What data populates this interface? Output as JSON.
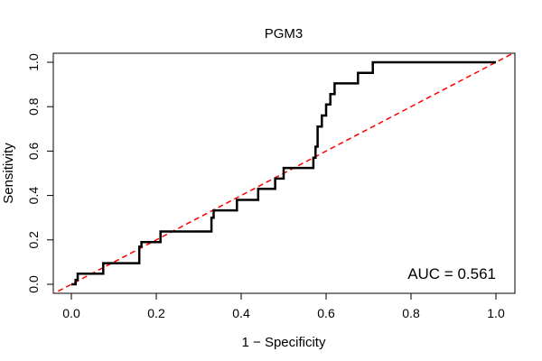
{
  "chart_data": {
    "type": "line",
    "title": "PGM3",
    "xlabel": "1 − Specificity",
    "ylabel": "Sensitivity",
    "xlim": [
      0.0,
      1.0
    ],
    "ylim": [
      0.0,
      1.0
    ],
    "xticks": [
      "0.0",
      "0.2",
      "0.4",
      "0.6",
      "0.8",
      "1.0"
    ],
    "yticks": [
      "0.0",
      "0.2",
      "0.4",
      "0.6",
      "0.8",
      "1.0"
    ],
    "grid": false,
    "legend": "none",
    "annotation": "AUC = 0.561",
    "series": [
      {
        "style": "step",
        "color": "#000000",
        "x": [
          0.0,
          0.01,
          0.01,
          0.015,
          0.015,
          0.075,
          0.075,
          0.16,
          0.16,
          0.165,
          0.165,
          0.21,
          0.21,
          0.33,
          0.33,
          0.335,
          0.335,
          0.39,
          0.39,
          0.44,
          0.44,
          0.48,
          0.48,
          0.5,
          0.5,
          0.57,
          0.57,
          0.575,
          0.575,
          0.58,
          0.58,
          0.59,
          0.59,
          0.6,
          0.6,
          0.61,
          0.61,
          0.62,
          0.62,
          0.675,
          0.675,
          0.71,
          0.71,
          1.0
        ],
        "y": [
          0.0,
          0.0,
          0.02,
          0.02,
          0.048,
          0.048,
          0.095,
          0.095,
          0.17,
          0.17,
          0.19,
          0.19,
          0.238,
          0.238,
          0.3,
          0.3,
          0.333,
          0.333,
          0.38,
          0.38,
          0.43,
          0.43,
          0.476,
          0.476,
          0.524,
          0.524,
          0.57,
          0.57,
          0.62,
          0.62,
          0.71,
          0.71,
          0.76,
          0.76,
          0.81,
          0.81,
          0.857,
          0.857,
          0.905,
          0.905,
          0.952,
          0.952,
          1.0,
          1.0
        ]
      },
      {
        "style": "dashed",
        "color": "#ff0000",
        "x": [
          0.0,
          1.0
        ],
        "y": [
          0.0,
          1.0
        ]
      }
    ]
  }
}
